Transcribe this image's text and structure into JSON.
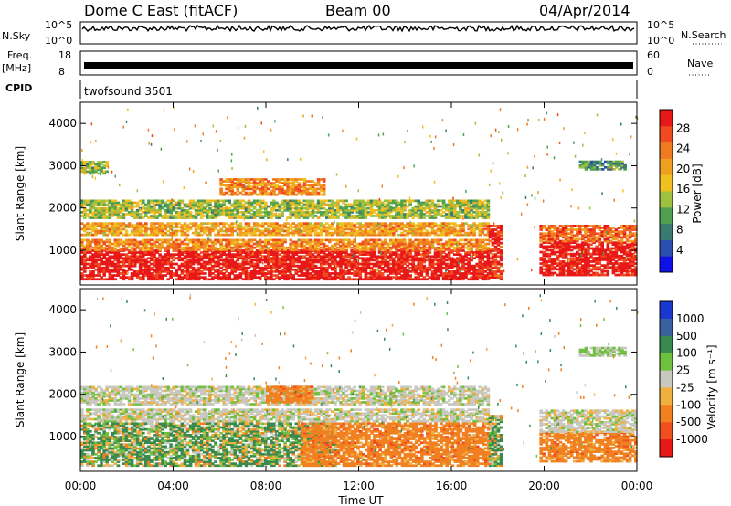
{
  "header": {
    "station": "Dome C East (fitACF)",
    "beam": "Beam 00",
    "date": "04/Apr/2014"
  },
  "strips": {
    "nsky_label": "N.Sky",
    "nsky_ticks": [
      "10^5",
      "10^0"
    ],
    "nsearch_label": "N.Search",
    "nsearch_ticks": [
      "10^5",
      "10^0"
    ],
    "freq_label_1": "Freq.",
    "freq_label_2": "[MHz]",
    "freq_ticks": [
      "18",
      "8"
    ],
    "nave_label": "Nave",
    "nave_ticks": [
      "60",
      "0"
    ],
    "cpid_label": "CPID",
    "cpid_value": "twofsound 3501"
  },
  "chart_data": [
    {
      "type": "heatmap",
      "title": "",
      "xlabel": "Time UT",
      "ylabel": "Slant Range [km]",
      "x_ticks": [
        "00:00",
        "04:00",
        "08:00",
        "12:00",
        "16:00",
        "20:00",
        "00:00"
      ],
      "y_ticks": [
        1000,
        2000,
        3000,
        4000
      ],
      "ylim": [
        180,
        4500
      ],
      "colorbar": {
        "label": "Power [dB]",
        "ticks": [
          4,
          8,
          12,
          16,
          20,
          24,
          28
        ],
        "colors": [
          "#1010e8",
          "#2a4fb0",
          "#3a7a70",
          "#50a050",
          "#a0c040",
          "#f0c020",
          "#f0a020",
          "#f07a20",
          "#f04a20",
          "#e81818"
        ]
      },
      "echo_regions": [
        {
          "t0": 0.0,
          "t1": 17.6,
          "r0": 300,
          "r1": 1000,
          "value": 28
        },
        {
          "t0": 0.0,
          "t1": 17.6,
          "r0": 1000,
          "r1": 1250,
          "value": 20
        },
        {
          "t0": 0.0,
          "t1": 17.6,
          "r0": 1350,
          "r1": 1650,
          "value": 18
        },
        {
          "t0": 0.0,
          "t1": 17.6,
          "r0": 1750,
          "r1": 2200,
          "value": 12
        },
        {
          "t0": 0.0,
          "t1": 1.2,
          "r0": 2800,
          "r1": 3100,
          "value": 12
        },
        {
          "t0": 6.0,
          "t1": 10.5,
          "r0": 2300,
          "r1": 2700,
          "value": 20
        },
        {
          "t0": 17.6,
          "t1": 18.2,
          "r0": 300,
          "r1": 1600,
          "value": 26
        },
        {
          "t0": 19.8,
          "t1": 24.0,
          "r0": 400,
          "r1": 1200,
          "value": 28
        },
        {
          "t0": 19.8,
          "t1": 24.0,
          "r0": 1200,
          "r1": 1600,
          "value": 22
        },
        {
          "t0": 21.5,
          "t1": 23.5,
          "r0": 2900,
          "r1": 3100,
          "value": 8
        }
      ]
    },
    {
      "type": "heatmap",
      "title": "",
      "xlabel": "Time UT",
      "ylabel": "Slant Range [km]",
      "x_ticks": [
        "00:00",
        "04:00",
        "08:00",
        "12:00",
        "16:00",
        "20:00",
        "00:00"
      ],
      "y_ticks": [
        1000,
        2000,
        3000,
        4000
      ],
      "ylim": [
        180,
        4500
      ],
      "colorbar": {
        "label": "Velocity [m s⁻¹]",
        "ticks": [
          1000,
          500,
          100,
          25,
          -25,
          -100,
          -500,
          -1000
        ],
        "colors": [
          "#1838d0",
          "#3a60a0",
          "#3a8a50",
          "#70c040",
          "#c8c8c0",
          "#f0b040",
          "#f08020",
          "#f05020",
          "#e81818"
        ]
      },
      "echo_regions": [
        {
          "t0": 0.0,
          "t1": 11.0,
          "r0": 300,
          "r1": 1300,
          "value": 100
        },
        {
          "t0": 9.5,
          "t1": 17.6,
          "r0": 300,
          "r1": 1300,
          "value": -300
        },
        {
          "t0": 0.0,
          "t1": 17.6,
          "r0": 1350,
          "r1": 1650,
          "value": 0
        },
        {
          "t0": 0.0,
          "t1": 17.6,
          "r0": 1750,
          "r1": 2200,
          "value": 0
        },
        {
          "t0": 8.0,
          "t1": 10.0,
          "r0": 1800,
          "r1": 2200,
          "value": -300
        },
        {
          "t0": 17.6,
          "t1": 18.2,
          "r0": 300,
          "r1": 1500,
          "value": 100
        },
        {
          "t0": 19.8,
          "t1": 24.0,
          "r0": 400,
          "r1": 1100,
          "value": -300
        },
        {
          "t0": 19.8,
          "t1": 24.0,
          "r0": 1100,
          "r1": 1600,
          "value": 0
        },
        {
          "t0": 21.5,
          "t1": 23.5,
          "r0": 2900,
          "r1": 3100,
          "value": 25
        }
      ]
    }
  ]
}
